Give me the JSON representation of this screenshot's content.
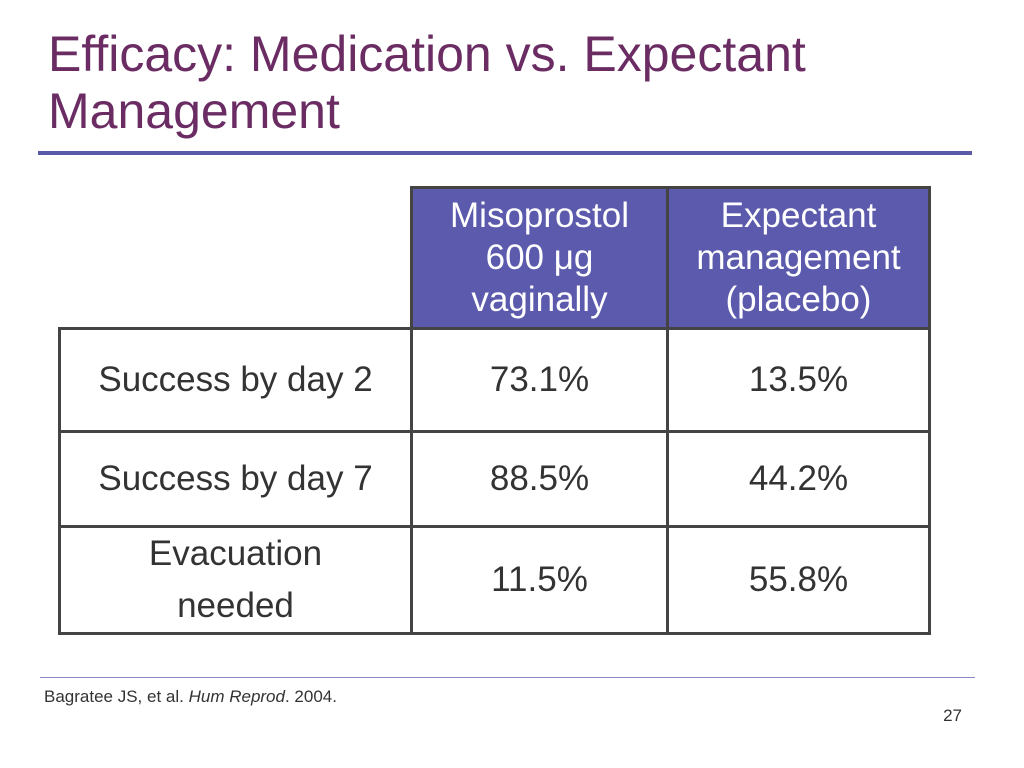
{
  "slide": {
    "title_line1": "Efficacy: Medication vs. Expectant",
    "title_line2": "Management",
    "title_color": "#6a2c63",
    "rule_color": "#5b5aa8"
  },
  "table": {
    "header_bg": "#5b5aac",
    "header": {
      "col1": [
        "Misoprostol",
        "600 μg",
        "vaginally"
      ],
      "col2": [
        "Expectant",
        "management",
        "(placebo)"
      ]
    },
    "rows": [
      {
        "label": [
          "Success by day 2"
        ],
        "values": [
          "73.1%",
          "13.5%"
        ]
      },
      {
        "label": [
          "Success by day 7"
        ],
        "values": [
          "88.5%",
          "44.2%"
        ]
      },
      {
        "label": [
          "Evacuation",
          "needed"
        ],
        "values": [
          "11.5%",
          "55.8%"
        ]
      }
    ]
  },
  "footer": {
    "citation_authors": "Bagratee JS, et al. ",
    "citation_journal": "Hum Reprod",
    "citation_year": ". 2004.",
    "page_number": "27"
  }
}
